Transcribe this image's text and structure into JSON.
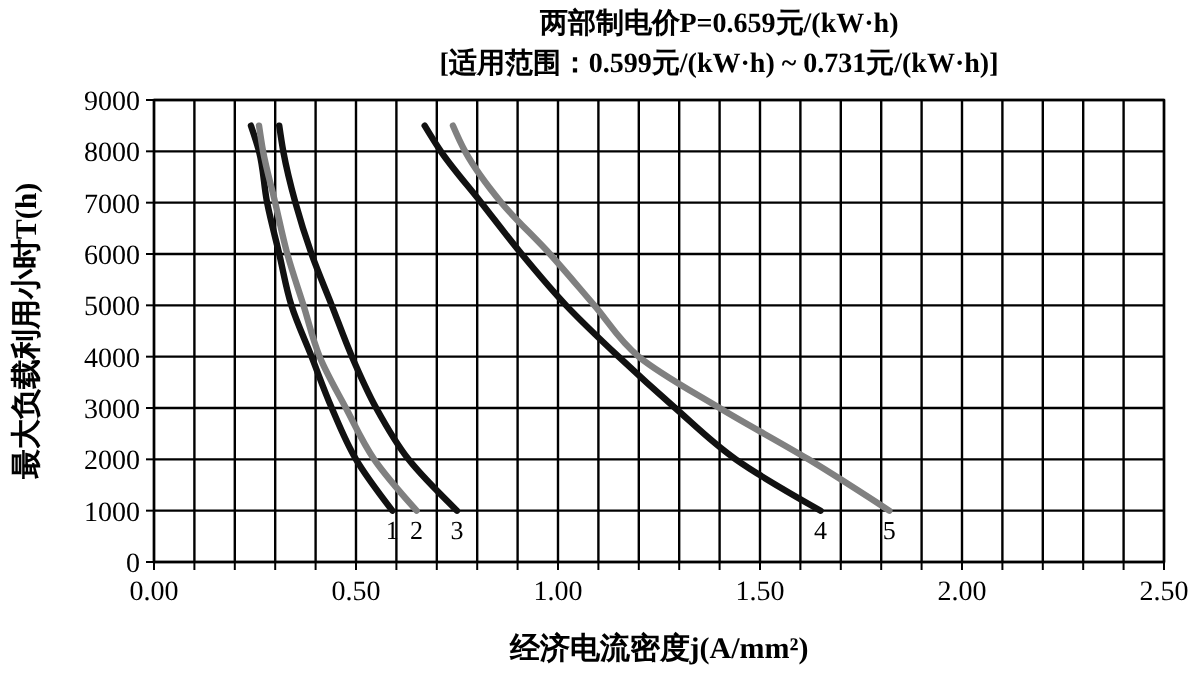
{
  "chart_data": {
    "type": "line",
    "title": "两部制电价P=0.659元/(kW·h)",
    "subtitle": "[适用范围：0.599元/(kW·h) ~ 0.731元/(kW·h)]",
    "xlabel": "经济电流密度j(A/mm²)",
    "ylabel": "最大负载利用小时T(h)",
    "xlim": [
      0,
      2.5
    ],
    "ylim": [
      0,
      9000
    ],
    "xticks": [
      {
        "value": 0,
        "label": "0.00"
      },
      {
        "value": 0.1,
        "label": null
      },
      {
        "value": 0.2,
        "label": null
      },
      {
        "value": 0.3,
        "label": null
      },
      {
        "value": 0.4,
        "label": null
      },
      {
        "value": 0.5,
        "label": "0.50"
      },
      {
        "value": 0.6,
        "label": null
      },
      {
        "value": 0.7,
        "label": null
      },
      {
        "value": 0.8,
        "label": null
      },
      {
        "value": 0.9,
        "label": null
      },
      {
        "value": 1,
        "label": "1.00"
      },
      {
        "value": 1.1,
        "label": null
      },
      {
        "value": 1.2,
        "label": null
      },
      {
        "value": 1.3,
        "label": null
      },
      {
        "value": 1.4,
        "label": null
      },
      {
        "value": 1.5,
        "label": "1.50"
      },
      {
        "value": 1.6,
        "label": null
      },
      {
        "value": 1.7,
        "label": null
      },
      {
        "value": 1.8,
        "label": null
      },
      {
        "value": 1.9,
        "label": null
      },
      {
        "value": 2,
        "label": "2.00"
      },
      {
        "value": 2.1,
        "label": null
      },
      {
        "value": 2.2,
        "label": null
      },
      {
        "value": 2.3,
        "label": null
      },
      {
        "value": 2.4,
        "label": null
      },
      {
        "value": 2.5,
        "label": "2.50"
      }
    ],
    "yticks": [
      0,
      1000,
      2000,
      3000,
      4000,
      5000,
      6000,
      7000,
      8000,
      9000
    ],
    "grid": true,
    "legend": false,
    "marker": "none",
    "line_style": "solid",
    "series": [
      {
        "name": "1",
        "color": "#111111",
        "x": [
          0.24,
          0.26,
          0.28,
          0.31,
          0.34,
          0.39,
          0.44,
          0.5,
          0.59
        ],
        "values": [
          8500,
          8000,
          7000,
          6000,
          5000,
          4000,
          3000,
          2000,
          1000
        ]
      },
      {
        "name": "2",
        "color": "#808080",
        "x": [
          0.26,
          0.27,
          0.3,
          0.33,
          0.37,
          0.41,
          0.475,
          0.545,
          0.65
        ],
        "values": [
          8500,
          8000,
          7000,
          6000,
          5000,
          4000,
          3000,
          2000,
          1000
        ]
      },
      {
        "name": "3",
        "color": "#111111",
        "x": [
          0.31,
          0.32,
          0.35,
          0.39,
          0.44,
          0.49,
          0.55,
          0.63,
          0.75
        ],
        "values": [
          8500,
          8000,
          7000,
          6000,
          5000,
          4000,
          3000,
          2000,
          1000
        ]
      },
      {
        "name": "4",
        "color": "#111111",
        "x": [
          0.67,
          0.71,
          0.81,
          0.91,
          1.02,
          1.15,
          1.29,
          1.44,
          1.65
        ],
        "values": [
          8500,
          8000,
          7000,
          6000,
          5000,
          4000,
          3000,
          2000,
          1000
        ]
      },
      {
        "name": "5",
        "color": "#808080",
        "x": [
          0.74,
          0.77,
          0.86,
          0.98,
          1.09,
          1.2,
          1.4,
          1.62,
          1.82
        ],
        "values": [
          8500,
          8000,
          7000,
          6000,
          5000,
          4000,
          3000,
          2000,
          1000
        ]
      }
    ]
  }
}
